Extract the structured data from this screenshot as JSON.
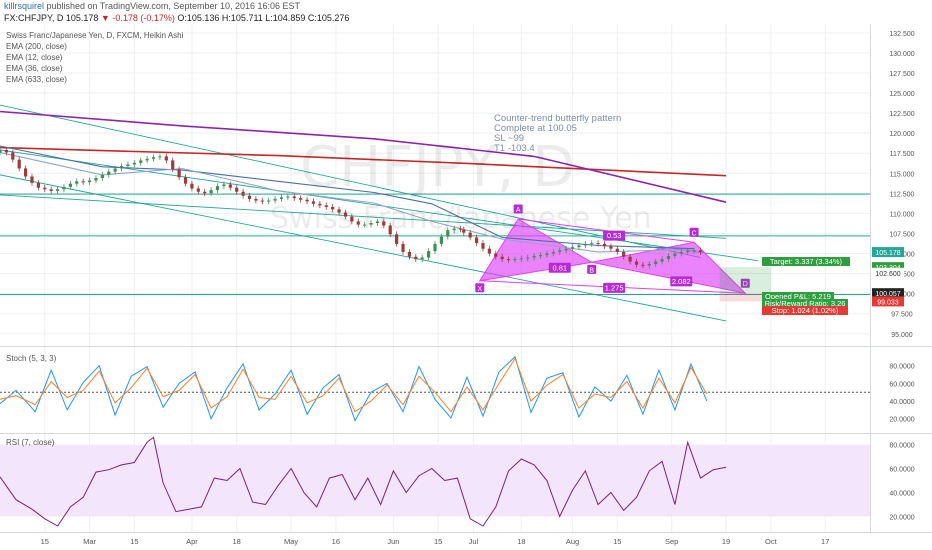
{
  "header": {
    "user": "killrsquirel",
    "published": " published on TradingView.com, September 10, 2016 16:06 EST",
    "symbol": "FX:CHFJPY, D",
    "last": "105.178",
    "change": "▼ -0.178 (-0.17%)",
    "ohlc": "O:105.136 H:105.711 L:104.859 C:105.276"
  },
  "indicators": [
    "Swiss Franc/Japanese Yen, D, FXCM, Heikin Ashi",
    "EMA (200, close)",
    "EMA (12, close)",
    "EMA (36, close)",
    "EMA (633, close)"
  ],
  "watermark": {
    "symbol": "CHFJPY, D",
    "name": "Swiss Franc/Japanese Yen"
  },
  "annotation": [
    "Counter-trend butterfly pattern",
    "Complete at 100.05",
    "SL ~99",
    "T1 -103.4"
  ],
  "colors": {
    "up": "#3f8f54",
    "down": "#9c3b3b",
    "ema200": "#8e24aa",
    "ema633": "#c62828",
    "ema12": "#8fa6c4",
    "ema36": "#4a6fa5",
    "trend": "#26a69a",
    "pattern": "#e040fb",
    "stochK": "#2196f3",
    "stochD": "#ff7f2a",
    "rsi": "#7b1f7b",
    "target": "#2e9e3e",
    "stop": "#e53935"
  },
  "chart_data": [
    {
      "type": "line",
      "title": "Swiss Franc/Japanese Yen, D, FXCM, Heikin Ashi",
      "y_ticks": [
        "132.500",
        "130.000",
        "127.500",
        "125.000",
        "122.500",
        "120.000",
        "117.500",
        "115.000",
        "112.500",
        "110.000",
        "107.500",
        "105.000",
        "102.500",
        "100.000",
        "97.500",
        "95.000"
      ],
      "ylim": [
        93.6,
        133.6
      ],
      "x_ticks": [
        "15",
        "Mar",
        "15",
        "Apr",
        "18",
        "May",
        "16",
        "Jun",
        "15",
        "Jul",
        "18",
        "Aug",
        "15",
        "Sep",
        "19",
        "Oct",
        "17"
      ],
      "x_tick_days": [
        -3,
        11,
        25,
        43,
        57,
        74,
        88,
        106,
        120,
        131,
        146,
        162,
        176,
        193,
        210,
        224,
        241
      ],
      "x_range": [
        -17,
        255
      ],
      "candles_open_close_by_day": {
        "days": [
          -17,
          -15,
          -13,
          -11,
          -9,
          -7,
          -5,
          -3,
          -1,
          1,
          3,
          5,
          7,
          9,
          11,
          13,
          15,
          17,
          19,
          21,
          23,
          25,
          27,
          29,
          31,
          33,
          35,
          37,
          39,
          41,
          43,
          45,
          47,
          49,
          51,
          53,
          55,
          57,
          59,
          61,
          63,
          65,
          67,
          69,
          71,
          73,
          75,
          77,
          79,
          81,
          83,
          85,
          87,
          89,
          91,
          93,
          95,
          97,
          99,
          101,
          103,
          105,
          107,
          109,
          111,
          113,
          115,
          117,
          119,
          121,
          123,
          125,
          127,
          128,
          130,
          132,
          134,
          136,
          138,
          140,
          142,
          144,
          146,
          148,
          150,
          152,
          154,
          156,
          158,
          160,
          162,
          164,
          166,
          168,
          170,
          172,
          174,
          176,
          178,
          180,
          182,
          184,
          186,
          188,
          190,
          192,
          194,
          196,
          198,
          200,
          202
        ],
        "open": [
          117.6,
          117.9,
          117.6,
          116.7,
          115.6,
          114.6,
          113.8,
          113.2,
          113.0,
          112.8,
          113.0,
          113.3,
          113.7,
          114.0,
          113.9,
          114.1,
          114.4,
          114.8,
          115.2,
          115.6,
          115.9,
          116.1,
          116.3,
          116.6,
          116.8,
          117.0,
          117.1,
          116.6,
          115.5,
          114.5,
          113.7,
          113.1,
          112.7,
          112.5,
          112.9,
          113.4,
          113.6,
          113.2,
          112.7,
          112.2,
          111.8,
          111.6,
          111.5,
          111.6,
          111.8,
          112.0,
          112.1,
          111.9,
          111.7,
          111.5,
          111.2,
          111.0,
          110.8,
          110.5,
          110.1,
          109.6,
          109.0,
          108.6,
          108.6,
          108.8,
          109.0,
          108.5,
          107.4,
          106.2,
          105.2,
          104.6,
          104.3,
          104.5,
          105.3,
          106.2,
          107.1,
          107.9,
          108.1,
          108.0,
          107.6,
          107.0,
          106.3,
          105.6,
          105.0,
          104.6,
          104.3,
          104.2,
          104.3,
          104.4,
          104.5,
          104.7,
          104.8,
          105.0,
          105.2,
          105.4,
          105.6,
          105.8,
          106.0,
          106.2,
          106.3,
          106.2,
          105.9,
          105.6,
          105.2,
          104.6,
          104.0,
          103.6,
          103.5,
          103.7,
          104.0,
          104.3,
          104.7,
          105.0,
          105.2,
          105.3,
          105.4
        ],
        "close": [
          117.9,
          117.6,
          116.7,
          115.6,
          114.6,
          113.8,
          113.2,
          113.0,
          112.8,
          113.0,
          113.3,
          113.7,
          114.0,
          113.9,
          114.1,
          114.4,
          114.8,
          115.2,
          115.6,
          115.9,
          116.1,
          116.3,
          116.6,
          116.8,
          117.0,
          117.1,
          116.6,
          115.5,
          114.5,
          113.7,
          113.1,
          112.7,
          112.5,
          112.9,
          113.4,
          113.6,
          113.2,
          112.7,
          112.2,
          111.8,
          111.6,
          111.5,
          111.6,
          111.8,
          112.0,
          112.1,
          111.9,
          111.7,
          111.5,
          111.2,
          111.0,
          110.8,
          110.5,
          110.1,
          109.6,
          109.0,
          108.6,
          108.6,
          108.8,
          109.0,
          108.5,
          107.4,
          106.2,
          105.2,
          104.6,
          104.3,
          104.5,
          105.3,
          106.2,
          107.1,
          107.9,
          108.1,
          108.0,
          107.6,
          107.0,
          106.3,
          105.6,
          105.0,
          104.6,
          104.3,
          104.2,
          104.3,
          104.4,
          104.5,
          104.7,
          104.8,
          105.0,
          105.2,
          105.4,
          105.6,
          105.8,
          106.0,
          106.2,
          106.3,
          106.2,
          105.9,
          105.6,
          105.2,
          104.6,
          104.0,
          103.6,
          103.5,
          103.7,
          104.0,
          104.3,
          104.7,
          105.0,
          105.2,
          105.3,
          105.4,
          105.2
        ]
      },
      "ema_lines": [
        {
          "id": "ema633",
          "x": [
            -17,
            70,
            130,
            210
          ],
          "y": [
            118.2,
            117.2,
            116.2,
            114.7
          ]
        },
        {
          "id": "ema200",
          "x": [
            -17,
            40,
            100,
            150,
            210
          ],
          "y": [
            122.7,
            120.9,
            119.3,
            117.1,
            111.4
          ]
        },
        {
          "id": "ema36",
          "x": [
            -17,
            15,
            40,
            70,
            100,
            118,
            140,
            170,
            200
          ],
          "y": [
            118.4,
            115.8,
            115.4,
            114.0,
            112.6,
            111.2,
            107.0,
            106.0,
            105.6
          ]
        },
        {
          "id": "ema12",
          "x": [
            -17,
            15,
            40,
            70,
            100,
            118,
            140,
            170,
            200
          ],
          "y": [
            117.6,
            114.8,
            115.6,
            112.8,
            111.3,
            109.0,
            106.8,
            105.2,
            105.5
          ]
        }
      ],
      "trend_lines": [
        {
          "x": [
            -17,
            202
          ],
          "y": [
            123.5,
            104.5
          ]
        },
        {
          "x": [
            -17,
            210
          ],
          "y": [
            114.8,
            96.6
          ]
        },
        {
          "x": [
            -17,
            220
          ],
          "y": [
            117.9,
            104.1
          ]
        },
        {
          "x": [
            -17,
            210
          ],
          "y": [
            112.3,
            106.9
          ]
        }
      ],
      "horizontal_levels": [
        112.4,
        107.2,
        99.9
      ],
      "butterfly": {
        "points": [
          {
            "label": "X",
            "day": 133,
            "price": 101.6
          },
          {
            "label": "A",
            "day": 145,
            "price": 109.3
          },
          {
            "label": "B",
            "day": 168,
            "price": 103.9
          },
          {
            "label": "C",
            "day": 200,
            "price": 106.4
          },
          {
            "label": "D",
            "day": 216,
            "price": 100.05
          }
        ],
        "ratios": [
          {
            "label": "0.81",
            "day": 158,
            "price": 103.1
          },
          {
            "label": "0.53",
            "day": 175,
            "price": 107.1
          },
          {
            "label": "1.275",
            "day": 175,
            "price": 100.6
          },
          {
            "label": "2.082",
            "day": 196,
            "price": 101.4
          }
        ]
      },
      "position": {
        "target": "Target: 3.337 (3.34%)",
        "opened_pl": "Opened P&L: 5.219",
        "risk_reward": "Risk/Reward Ratio: 3.26",
        "stop": "Stop: 1.024 (1.02%)"
      },
      "price_tags": [
        {
          "value": "105.178",
          "price": 105.178,
          "color": "#26a69a"
        },
        {
          "value": "103.304",
          "price": 103.304,
          "color": "#2e9e3e"
        },
        {
          "value": "102.600",
          "price": 102.6,
          "color": "#ffffff"
        },
        {
          "value": "100.057",
          "price": 100.057,
          "color": "#222222"
        },
        {
          "value": "99.033",
          "price": 99.033,
          "color": "#e53935"
        }
      ]
    },
    {
      "type": "line",
      "title": "Stoch (5, 3, 3)",
      "y_ticks": [
        "80.0000",
        "60.0000",
        "40.0000",
        "20.0000"
      ],
      "ylim": [
        5,
        100
      ],
      "series": [
        {
          "id": "k",
          "x": [
            -17,
            -12,
            -6,
            -1,
            4,
            9,
            14,
            19,
            24,
            29,
            34,
            39,
            44,
            49,
            54,
            59,
            64,
            69,
            74,
            79,
            84,
            89,
            94,
            99,
            104,
            109,
            114,
            119,
            124,
            129,
            134,
            139,
            144,
            149,
            154,
            159,
            164,
            169,
            174,
            179,
            184,
            189,
            194,
            199,
            204
          ],
          "values": [
            37,
            52,
            28,
            75,
            30,
            61,
            80,
            24,
            68,
            79,
            33,
            60,
            73,
            20,
            55,
            82,
            30,
            48,
            75,
            25,
            55,
            70,
            18,
            50,
            60,
            28,
            79,
            42,
            21,
            67,
            23,
            73,
            90,
            27,
            66,
            72,
            22,
            56,
            40,
            69,
            25,
            75,
            30,
            82,
            40
          ]
        },
        {
          "id": "d",
          "x": [
            -17,
            -12,
            -6,
            -1,
            4,
            9,
            14,
            19,
            24,
            29,
            34,
            39,
            44,
            49,
            54,
            59,
            64,
            69,
            74,
            79,
            84,
            89,
            94,
            99,
            104,
            109,
            114,
            119,
            124,
            129,
            134,
            139,
            144,
            149,
            154,
            159,
            164,
            169,
            174,
            179,
            184,
            189,
            194,
            199,
            204
          ],
          "values": [
            42,
            46,
            36,
            62,
            44,
            52,
            74,
            38,
            55,
            77,
            45,
            52,
            70,
            32,
            45,
            76,
            44,
            42,
            68,
            38,
            46,
            66,
            28,
            40,
            58,
            36,
            68,
            50,
            28,
            56,
            30,
            60,
            88,
            40,
            58,
            70,
            32,
            48,
            44,
            62,
            32,
            66,
            38,
            78,
            48
          ]
        }
      ]
    },
    {
      "type": "line",
      "title": "RSI (7, close)",
      "y_ticks": [
        "80.0000",
        "60.0000",
        "40.0000",
        "20.0000"
      ],
      "ylim": [
        7,
        88
      ],
      "series": [
        {
          "id": "rsi",
          "x": [
            -17,
            -12,
            -7,
            -3,
            1,
            5,
            9,
            13,
            17,
            21,
            25,
            29,
            31,
            34,
            38,
            42,
            46,
            50,
            54,
            58,
            62,
            66,
            70,
            74,
            78,
            82,
            86,
            90,
            94,
            98,
            102,
            106,
            110,
            114,
            118,
            122,
            126,
            130,
            134,
            138,
            142,
            146,
            150,
            154,
            158,
            162,
            166,
            170,
            174,
            178,
            182,
            186,
            190,
            194,
            198,
            202,
            206,
            210
          ],
          "values": [
            53,
            34,
            26,
            18,
            12,
            28,
            36,
            57,
            59,
            63,
            65,
            82,
            86,
            48,
            24,
            26,
            28,
            52,
            50,
            60,
            32,
            30,
            46,
            60,
            40,
            28,
            52,
            55,
            34,
            52,
            30,
            58,
            40,
            54,
            60,
            50,
            52,
            18,
            12,
            28,
            58,
            68,
            63,
            50,
            20,
            42,
            58,
            30,
            40,
            25,
            36,
            58,
            66,
            30,
            82,
            52,
            59,
            61
          ]
        }
      ]
    }
  ]
}
